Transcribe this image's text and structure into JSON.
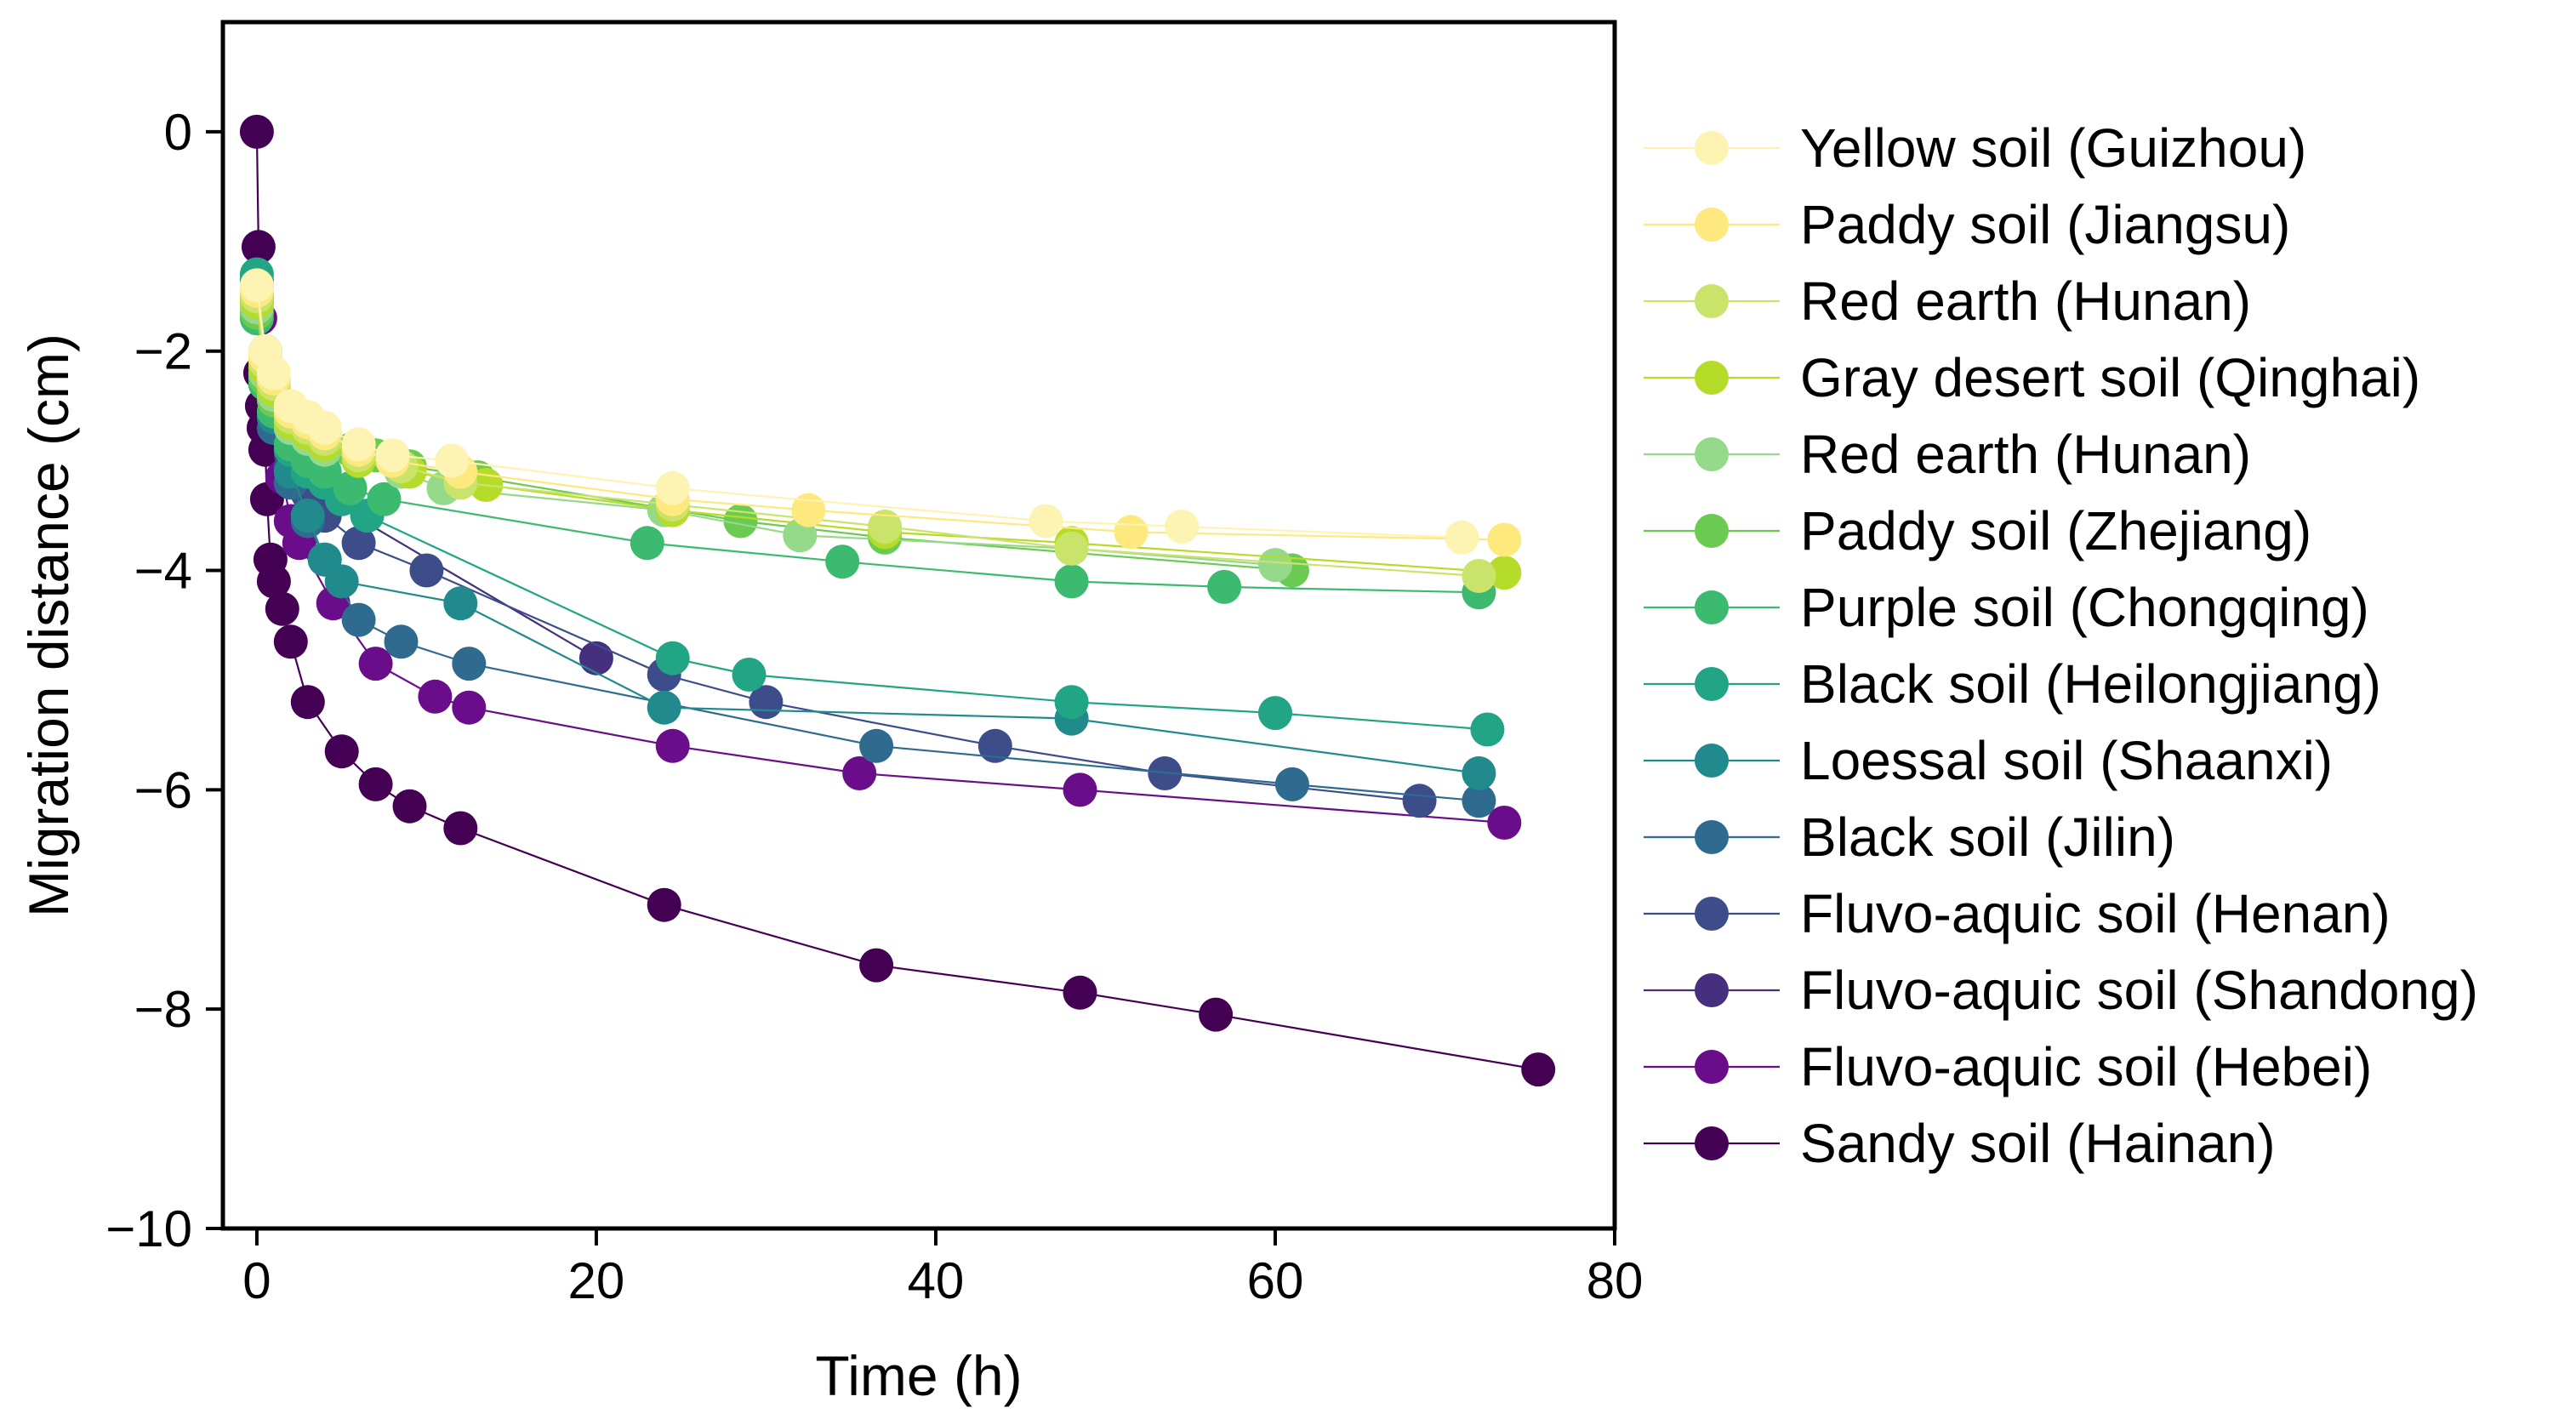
{
  "chart_data": {
    "type": "line",
    "title": "",
    "xlabel": "Time (h)",
    "ylabel": "Migration distance (cm)",
    "xlim": [
      -2,
      80
    ],
    "ylim": [
      -10,
      1
    ],
    "xticks": [
      0,
      20,
      40,
      60,
      80
    ],
    "yticks": [
      0,
      -2,
      -4,
      -6,
      -8,
      -10
    ],
    "xtick_labels": [
      "0",
      "20",
      "40",
      "60",
      "80"
    ],
    "ytick_labels": [
      "0",
      "−2",
      "−4",
      "−6",
      "−8",
      "−10"
    ],
    "grid": false,
    "legend_position": "outside-right",
    "series": [
      {
        "name": "Yellow soil (Guizhou)",
        "color": "#fdf3b3",
        "x": [
          0,
          0.5,
          1,
          2,
          3,
          4,
          6,
          8,
          11.5,
          24.5,
          46.5,
          54.5,
          71
        ],
        "y": [
          -1.4,
          -2.0,
          -2.2,
          -2.5,
          -2.6,
          -2.7,
          -2.85,
          -2.95,
          -3.0,
          -3.25,
          -3.55,
          -3.6,
          -3.7
        ]
      },
      {
        "name": "Paddy soil (Jiangsu)",
        "color": "#fde97e",
        "x": [
          0,
          0.5,
          1,
          2,
          3,
          4,
          6,
          8,
          12,
          24.5,
          32.5,
          51.5,
          73.5
        ],
        "y": [
          -1.45,
          -2.05,
          -2.25,
          -2.55,
          -2.65,
          -2.75,
          -2.9,
          -3.0,
          -3.1,
          -3.35,
          -3.45,
          -3.65,
          -3.72
        ]
      },
      {
        "name": "Red earth (Hunan)",
        "color": "#c9e36b",
        "x": [
          0,
          0.5,
          1,
          2,
          3,
          4,
          6,
          8.5,
          12,
          24.5,
          37,
          48,
          72
        ],
        "y": [
          -1.5,
          -2.1,
          -2.3,
          -2.6,
          -2.7,
          -2.8,
          -2.95,
          -3.05,
          -3.2,
          -3.4,
          -3.6,
          -3.8,
          -4.05
        ]
      },
      {
        "name": "Gray desert soil (Qinghai)",
        "color": "#b6dc2a",
        "x": [
          0,
          0.5,
          1,
          2,
          3,
          4,
          6,
          9,
          13.5,
          24.5,
          37,
          48,
          73.5
        ],
        "y": [
          -1.55,
          -2.15,
          -2.35,
          -2.65,
          -2.75,
          -2.85,
          -3.0,
          -3.1,
          -3.22,
          -3.45,
          -3.65,
          -3.75,
          -4.02
        ]
      },
      {
        "name": "Red earth (Hunan)",
        "color": "#95d98a",
        "x": [
          0,
          0.5,
          1,
          2,
          3,
          4,
          6,
          8.5,
          11,
          24,
          32,
          48,
          60
        ],
        "y": [
          -1.6,
          -2.2,
          -2.4,
          -2.7,
          -2.8,
          -2.9,
          -3.0,
          -3.1,
          -3.25,
          -3.45,
          -3.68,
          -3.8,
          -3.95
        ]
      },
      {
        "name": "Paddy soil (Zhejiang)",
        "color": "#6acb50",
        "x": [
          0,
          0.5,
          1,
          2,
          3,
          4,
          5.5,
          7,
          9,
          13,
          28.5,
          37,
          61
        ],
        "y": [
          -1.65,
          -2.25,
          -2.45,
          -2.6,
          -2.7,
          -2.75,
          -2.9,
          -2.95,
          -3.05,
          -3.15,
          -3.55,
          -3.7,
          -4.0
        ]
      },
      {
        "name": "Purple soil (Chongqing)",
        "color": "#3cba6f",
        "x": [
          0,
          0.5,
          1,
          2,
          3,
          4,
          5.5,
          7.5,
          23,
          34.5,
          48,
          57,
          72
        ],
        "y": [
          -1.7,
          -2.3,
          -2.55,
          -2.85,
          -3.0,
          -3.1,
          -3.25,
          -3.35,
          -3.75,
          -3.92,
          -4.1,
          -4.15,
          -4.2
        ]
      },
      {
        "name": "Black soil (Heilongjiang)",
        "color": "#21a584",
        "x": [
          0,
          0.5,
          1,
          2,
          3,
          4,
          5,
          6.5,
          24.5,
          29,
          48,
          60,
          72.5
        ],
        "y": [
          -1.3,
          -2.0,
          -2.4,
          -2.9,
          -3.1,
          -3.2,
          -3.35,
          -3.5,
          -4.8,
          -4.95,
          -5.2,
          -5.3,
          -5.45
        ]
      },
      {
        "name": "Loessal soil (Shaanxi)",
        "color": "#218a8d",
        "x": [
          0,
          0.5,
          1,
          2,
          3,
          4,
          5,
          12,
          24,
          48,
          72
        ],
        "y": [
          -1.35,
          -2.2,
          -2.6,
          -3.1,
          -3.5,
          -3.9,
          -4.1,
          -4.3,
          -5.25,
          -5.35,
          -5.85
        ]
      },
      {
        "name": "Black soil (Jilin)",
        "color": "#2f6b8e",
        "x": [
          0,
          0.5,
          1,
          2,
          3,
          4,
          6,
          8.5,
          12.5,
          36.5,
          61,
          72
        ],
        "y": [
          -1.4,
          -2.3,
          -2.7,
          -3.2,
          -3.55,
          -3.9,
          -4.45,
          -4.65,
          -4.85,
          -5.6,
          -5.95,
          -6.1
        ]
      },
      {
        "name": "Fluvo-aquic soil (Henan)",
        "color": "#3d4d8a",
        "x": [
          0,
          0.5,
          1,
          2,
          3,
          4,
          6,
          10,
          24,
          30,
          43.5,
          53.5,
          68.5
        ],
        "y": [
          -1.5,
          -2.2,
          -2.6,
          -3.05,
          -3.3,
          -3.5,
          -3.75,
          -4.0,
          -4.95,
          -5.2,
          -5.6,
          -5.85,
          -6.1
        ]
      },
      {
        "name": "Fluvo-aquic soil (Shandong)",
        "color": "#46307e",
        "x": [
          0,
          0.5,
          1,
          2,
          3,
          20
        ],
        "y": [
          -1.55,
          -2.25,
          -2.6,
          -2.95,
          -3.25,
          -4.8
        ]
      },
      {
        "name": "Fluvo-aquic soil (Hebei)",
        "color": "#6a0d8a",
        "x": [
          0,
          0.2,
          0.5,
          1,
          1.5,
          2,
          2.5,
          4.5,
          7,
          10.5,
          12.5,
          24.5,
          35.5,
          48.5,
          73.5
        ],
        "y": [
          -1.5,
          -1.7,
          -2.2,
          -2.7,
          -3.15,
          -3.55,
          -3.75,
          -4.3,
          -4.85,
          -5.15,
          -5.25,
          -5.6,
          -5.85,
          -6.0,
          -6.3
        ]
      },
      {
        "name": "Sandy soil (Hainan)",
        "color": "#440154",
        "x": [
          0,
          0.1,
          0.2,
          0.3,
          0.4,
          0.5,
          0.6,
          0.8,
          1,
          1.5,
          2,
          3,
          5,
          7,
          9,
          12,
          24,
          36.5,
          48.5,
          56.5,
          75.5
        ],
        "y": [
          0,
          -1.05,
          -2.2,
          -2.5,
          -2.7,
          -2.9,
          -3.35,
          -3.9,
          -4.1,
          -4.35,
          -4.65,
          -5.2,
          -5.65,
          -5.95,
          -6.15,
          -6.35,
          -7.05,
          -7.6,
          -7.85,
          -8.05,
          -8.55
        ]
      }
    ]
  }
}
